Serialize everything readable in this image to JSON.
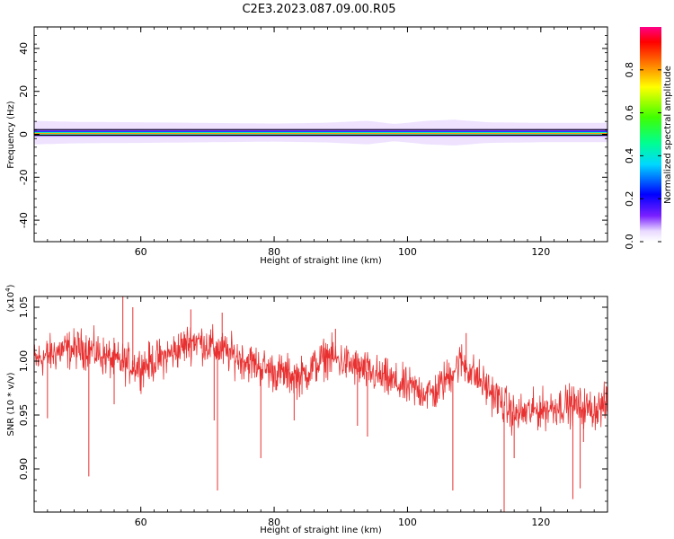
{
  "title": "C2E3.2023.087.09.00.R05",
  "chart_data": [
    {
      "type": "heatmap",
      "xlabel": "Height of straight line (km)",
      "ylabel": "Frequency (Hz)",
      "xlim": [
        44,
        130
      ],
      "ylim": [
        -50,
        50
      ],
      "xticks": [
        "60",
        "80",
        "100",
        "120"
      ],
      "yticks": [
        "-40",
        "-20",
        "0",
        "20",
        "40"
      ],
      "band_center_hz": 0.8,
      "band": [
        {
          "x": 44,
          "width_hz": 5.5
        },
        {
          "x": 50,
          "width_hz": 5.0
        },
        {
          "x": 60,
          "width_hz": 4.8
        },
        {
          "x": 70,
          "width_hz": 4.5
        },
        {
          "x": 80,
          "width_hz": 4.2
        },
        {
          "x": 88,
          "width_hz": 4.6
        },
        {
          "x": 94,
          "width_hz": 5.5
        },
        {
          "x": 98,
          "width_hz": 4.0
        },
        {
          "x": 103,
          "width_hz": 5.5
        },
        {
          "x": 107,
          "width_hz": 6.0
        },
        {
          "x": 112,
          "width_hz": 4.8
        },
        {
          "x": 120,
          "width_hz": 4.5
        },
        {
          "x": 130,
          "width_hz": 4.5
        }
      ],
      "colorbar": {
        "label": "Normalized spectral amplitude",
        "range": [
          0,
          1
        ],
        "ticks": [
          "0.0",
          "0.2",
          "0.4",
          "0.6",
          "0.8"
        ]
      }
    },
    {
      "type": "line",
      "xlabel": "Height of straight line (km)",
      "ylabel": "SNR (10 * v/v)",
      "exponent_label": "(x10",
      "exponent_power": "4",
      "xlim": [
        44,
        130
      ],
      "ylim": [
        0.86,
        1.06
      ],
      "xticks": [
        "60",
        "80",
        "100",
        "120"
      ],
      "yticks": [
        "0.90",
        "0.95",
        "1.00",
        "1.05"
      ],
      "line_color": "#e83030",
      "trend": [
        {
          "x": 44,
          "y": 1.0
        },
        {
          "x": 48,
          "y": 1.01
        },
        {
          "x": 52,
          "y": 1.012
        },
        {
          "x": 56,
          "y": 1.0
        },
        {
          "x": 60,
          "y": 0.995
        },
        {
          "x": 64,
          "y": 1.005
        },
        {
          "x": 68,
          "y": 1.02
        },
        {
          "x": 72,
          "y": 1.01
        },
        {
          "x": 76,
          "y": 1.0
        },
        {
          "x": 80,
          "y": 0.99
        },
        {
          "x": 84,
          "y": 0.985
        },
        {
          "x": 88,
          "y": 1.005
        },
        {
          "x": 92,
          "y": 0.995
        },
        {
          "x": 96,
          "y": 0.985
        },
        {
          "x": 100,
          "y": 0.975
        },
        {
          "x": 104,
          "y": 0.97
        },
        {
          "x": 108,
          "y": 1.0
        },
        {
          "x": 112,
          "y": 0.975
        },
        {
          "x": 116,
          "y": 0.95
        },
        {
          "x": 120,
          "y": 0.955
        },
        {
          "x": 124,
          "y": 0.96
        },
        {
          "x": 128,
          "y": 0.955
        },
        {
          "x": 130,
          "y": 0.96
        }
      ],
      "dips": [
        {
          "x": 52.2,
          "y": 0.893
        },
        {
          "x": 46.0,
          "y": 0.947
        },
        {
          "x": 56.0,
          "y": 0.96
        },
        {
          "x": 71.5,
          "y": 0.88
        },
        {
          "x": 71.0,
          "y": 0.945
        },
        {
          "x": 78.0,
          "y": 0.91
        },
        {
          "x": 83.0,
          "y": 0.945
        },
        {
          "x": 92.5,
          "y": 0.94
        },
        {
          "x": 94.0,
          "y": 0.93
        },
        {
          "x": 106.8,
          "y": 0.88
        },
        {
          "x": 114.5,
          "y": 0.86
        },
        {
          "x": 116.0,
          "y": 0.91
        },
        {
          "x": 124.8,
          "y": 0.872
        },
        {
          "x": 125.9,
          "y": 0.882
        },
        {
          "x": 126.4,
          "y": 0.925
        }
      ],
      "spikes": [
        {
          "x": 57.3,
          "y": 1.06
        },
        {
          "x": 58.8,
          "y": 1.05
        },
        {
          "x": 67.5,
          "y": 1.048
        },
        {
          "x": 72.2,
          "y": 1.045
        },
        {
          "x": 89.2,
          "y": 1.03
        },
        {
          "x": 108.8,
          "y": 1.026
        }
      ]
    }
  ]
}
